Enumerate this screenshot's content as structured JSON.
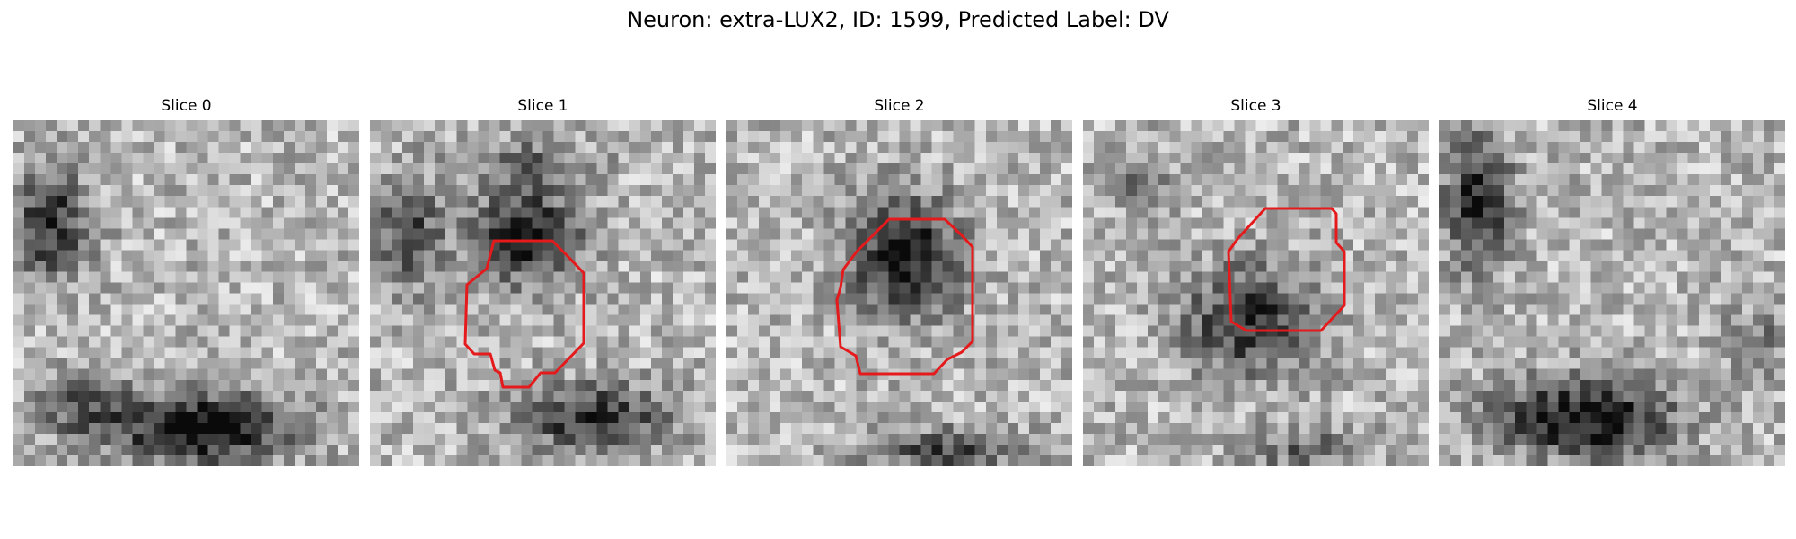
{
  "figure": {
    "title": "Neuron: extra-LUX2, ID: 1599, Predicted Label: DV"
  },
  "colors": {
    "contour": "#e41a1c",
    "background": "#ffffff"
  },
  "slices": [
    {
      "title": "Slice 0",
      "has_contour": false
    },
    {
      "title": "Slice 1",
      "has_contour": true
    },
    {
      "title": "Slice 2",
      "has_contour": true
    },
    {
      "title": "Slice 3",
      "has_contour": true
    },
    {
      "title": "Slice 4",
      "has_contour": false
    }
  ]
}
